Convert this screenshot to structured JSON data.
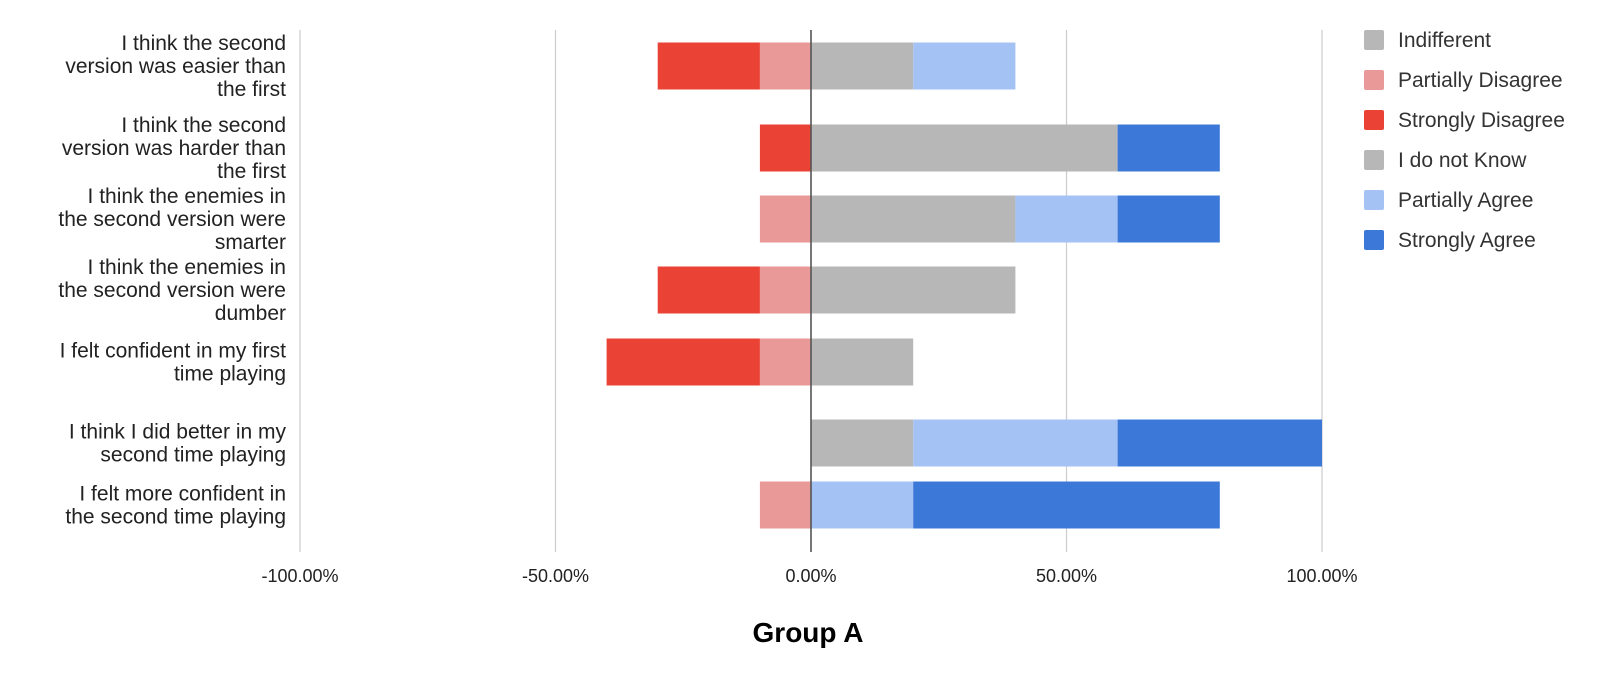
{
  "chart_data": {
    "type": "bar",
    "orientation": "horizontal",
    "stacked": "diverging",
    "title": "Group A",
    "xlim": [
      -1.0,
      1.0
    ],
    "x_ticks": [
      -1.0,
      -0.5,
      0.0,
      0.5,
      1.0
    ],
    "x_tick_labels": [
      "-100.00%",
      "-50.00%",
      "0.00%",
      "50.00%",
      "100.00%"
    ],
    "grid": true,
    "legend_position": "right",
    "categories": [
      "I think the second version was easier than the first",
      "I think the second version was harder than the first",
      "I think the enemies in the second version were smarter",
      "I think the enemies in the second version were dumber",
      "I felt confident in my first time playing",
      "I think I did better in my second time playing",
      "I felt more confident in the second time playing"
    ],
    "category_lines": [
      [
        "I think the second",
        "version was easier than",
        "the first"
      ],
      [
        "I think the second",
        "version was harder than",
        "the first"
      ],
      [
        "I think the enemies in",
        "the second version were",
        "smarter"
      ],
      [
        "I think the enemies in",
        "the second version were",
        "dumber"
      ],
      [
        "I felt confident in my first",
        "time playing"
      ],
      [
        "I think I did better in my",
        "second time playing"
      ],
      [
        "I felt more confident in",
        "the second time playing"
      ]
    ],
    "series": [
      {
        "name": "Indifferent",
        "color": "#b7b7b7",
        "values": [
          0,
          0,
          0,
          0,
          0,
          0,
          0
        ]
      },
      {
        "name": "Partially Disagree",
        "color": "#ea9999",
        "values": [
          -0.1,
          0,
          -0.1,
          -0.1,
          -0.1,
          0,
          -0.1
        ]
      },
      {
        "name": "Strongly Disagree",
        "color": "#ea4335",
        "values": [
          -0.2,
          -0.1,
          0,
          -0.2,
          -0.3,
          0,
          0
        ]
      },
      {
        "name": "I do not Know",
        "color": "#b7b7b7",
        "values": [
          0.2,
          0.6,
          0.4,
          0.4,
          0.2,
          0.2,
          0
        ]
      },
      {
        "name": "Partially Agree",
        "color": "#a4c2f4",
        "values": [
          0.2,
          0,
          0.2,
          0,
          0,
          0.4,
          0.2
        ]
      },
      {
        "name": "Strongly Agree",
        "color": "#3c78d8",
        "values": [
          0,
          0.2,
          0.2,
          0,
          0,
          0.4,
          0.6
        ]
      }
    ]
  }
}
